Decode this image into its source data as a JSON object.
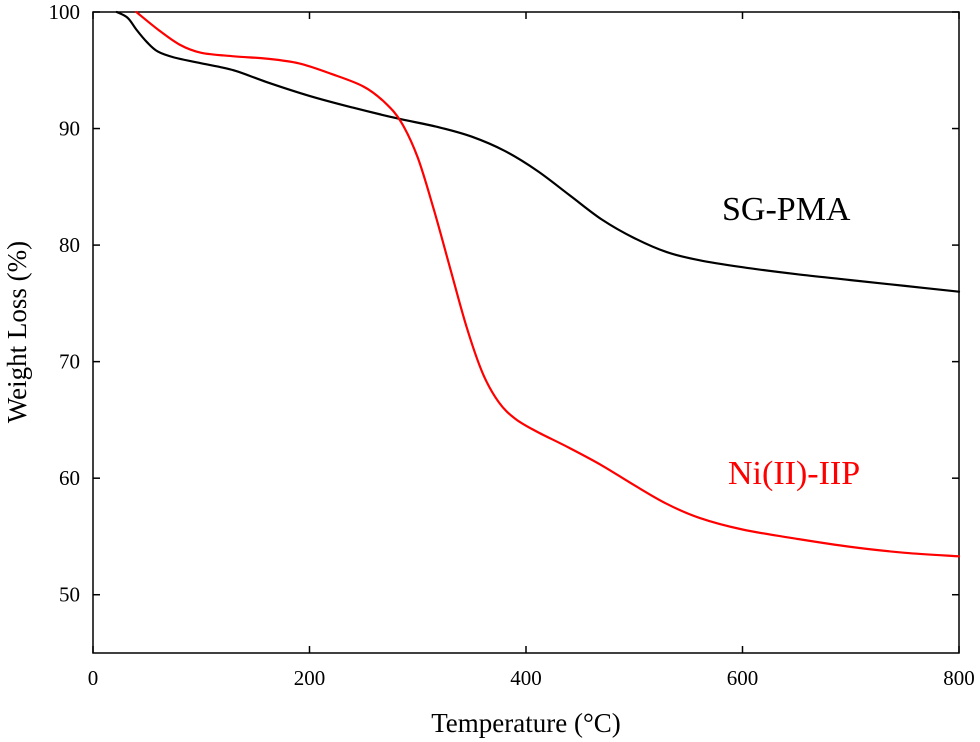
{
  "chart_data": {
    "type": "line",
    "xlabel": "Temperature (°C)",
    "ylabel": "Weight Loss (%)",
    "xlim": [
      0,
      800
    ],
    "ylim": [
      45,
      100
    ],
    "xticks": [
      0,
      200,
      400,
      600,
      800
    ],
    "yticks": [
      50,
      60,
      70,
      80,
      90,
      100
    ],
    "grid": false,
    "series": [
      {
        "name": "SG-PMA",
        "color": "#000000",
        "points": [
          [
            22,
            100
          ],
          [
            32,
            99.5
          ],
          [
            40,
            98.5
          ],
          [
            50,
            97.4
          ],
          [
            60,
            96.6
          ],
          [
            75,
            96.1
          ],
          [
            100,
            95.6
          ],
          [
            130,
            95.0
          ],
          [
            160,
            94.0
          ],
          [
            200,
            92.8
          ],
          [
            240,
            91.8
          ],
          [
            280,
            90.9
          ],
          [
            320,
            90.1
          ],
          [
            350,
            89.3
          ],
          [
            380,
            88.1
          ],
          [
            410,
            86.4
          ],
          [
            440,
            84.3
          ],
          [
            470,
            82.2
          ],
          [
            500,
            80.6
          ],
          [
            530,
            79.4
          ],
          [
            560,
            78.7
          ],
          [
            600,
            78.1
          ],
          [
            650,
            77.5
          ],
          [
            700,
            77.0
          ],
          [
            750,
            76.5
          ],
          [
            800,
            76.0
          ]
        ]
      },
      {
        "name": "Ni(II)-IIP",
        "color": "#ff0000",
        "points": [
          [
            40,
            100
          ],
          [
            60,
            98.5
          ],
          [
            80,
            97.2
          ],
          [
            100,
            96.5
          ],
          [
            130,
            96.2
          ],
          [
            160,
            96.0
          ],
          [
            190,
            95.6
          ],
          [
            220,
            94.7
          ],
          [
            250,
            93.6
          ],
          [
            270,
            92.2
          ],
          [
            285,
            90.5
          ],
          [
            300,
            87.5
          ],
          [
            315,
            83.0
          ],
          [
            330,
            78.0
          ],
          [
            345,
            73.0
          ],
          [
            360,
            69.0
          ],
          [
            375,
            66.5
          ],
          [
            390,
            65.1
          ],
          [
            410,
            64.0
          ],
          [
            440,
            62.6
          ],
          [
            470,
            61.1
          ],
          [
            500,
            59.4
          ],
          [
            530,
            57.8
          ],
          [
            560,
            56.6
          ],
          [
            600,
            55.6
          ],
          [
            650,
            54.8
          ],
          [
            700,
            54.1
          ],
          [
            750,
            53.6
          ],
          [
            800,
            53.3
          ]
        ]
      }
    ]
  }
}
